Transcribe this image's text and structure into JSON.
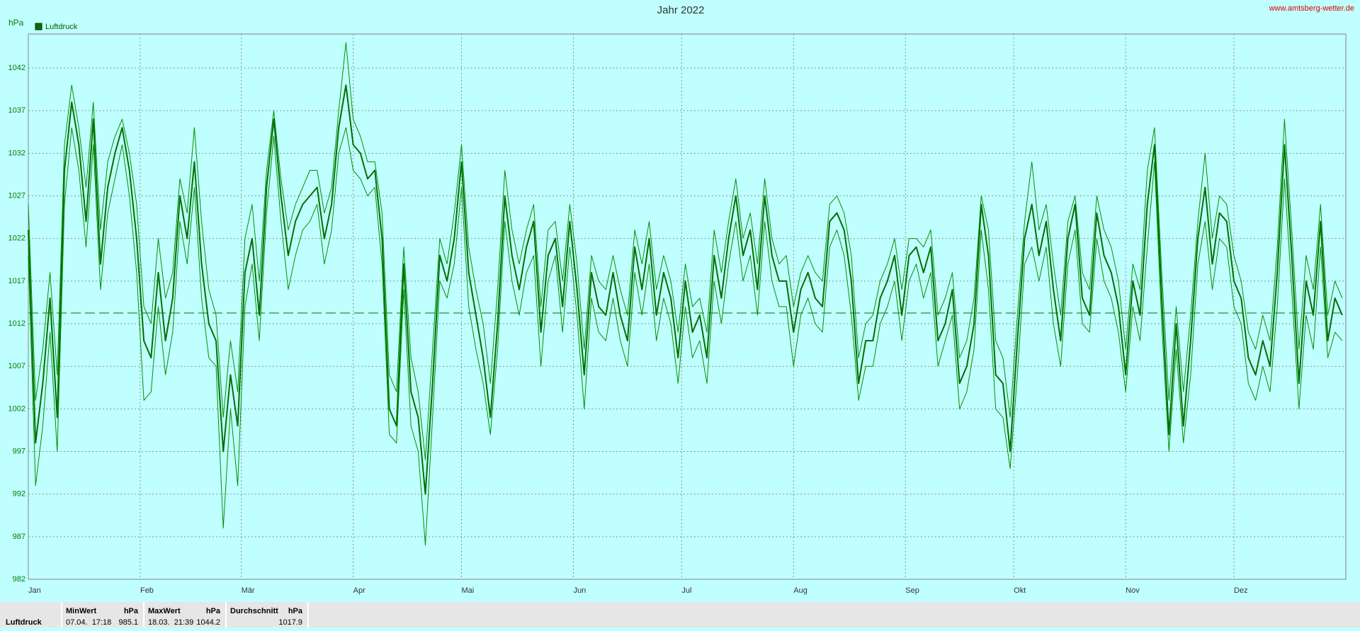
{
  "chart_data": {
    "type": "line",
    "title": "Jahr 2022",
    "y_label": "hPa",
    "source": "www.amtsberg-wetter.de",
    "xlim": [
      0,
      365
    ],
    "ylim": [
      982,
      1046
    ],
    "xticks": [
      {
        "value": 0,
        "label": "Jan"
      },
      {
        "value": 31,
        "label": "Feb"
      },
      {
        "value": 59,
        "label": "Mär"
      },
      {
        "value": 90,
        "label": "Apr"
      },
      {
        "value": 120,
        "label": "Mai"
      },
      {
        "value": 151,
        "label": "Jun"
      },
      {
        "value": 181,
        "label": "Jul"
      },
      {
        "value": 212,
        "label": "Aug"
      },
      {
        "value": 243,
        "label": "Sep"
      },
      {
        "value": 273,
        "label": "Okt"
      },
      {
        "value": 304,
        "label": "Nov"
      },
      {
        "value": 334,
        "label": "Dez"
      }
    ],
    "yticks": [
      982,
      987,
      992,
      997,
      1002,
      1007,
      1012,
      1017,
      1022,
      1027,
      1032,
      1037,
      1042
    ],
    "grid": true,
    "reference_line": 1013.25,
    "x": [
      0,
      2,
      4,
      6,
      8,
      10,
      12,
      14,
      16,
      18,
      20,
      22,
      24,
      26,
      28,
      30,
      32,
      34,
      36,
      38,
      40,
      42,
      44,
      46,
      48,
      50,
      52,
      54,
      56,
      58,
      60,
      62,
      64,
      66,
      68,
      70,
      72,
      74,
      76,
      78,
      80,
      82,
      84,
      86,
      88,
      90,
      92,
      94,
      96,
      98,
      100,
      102,
      104,
      106,
      108,
      110,
      112,
      114,
      116,
      118,
      120,
      122,
      124,
      126,
      128,
      130,
      132,
      134,
      136,
      138,
      140,
      142,
      144,
      146,
      148,
      150,
      152,
      154,
      156,
      158,
      160,
      162,
      164,
      166,
      168,
      170,
      172,
      174,
      176,
      178,
      180,
      182,
      184,
      186,
      188,
      190,
      192,
      194,
      196,
      198,
      200,
      202,
      204,
      206,
      208,
      210,
      212,
      214,
      216,
      218,
      220,
      222,
      224,
      226,
      228,
      230,
      232,
      234,
      236,
      238,
      240,
      242,
      244,
      246,
      248,
      250,
      252,
      254,
      256,
      258,
      260,
      262,
      264,
      266,
      268,
      270,
      272,
      274,
      276,
      278,
      280,
      282,
      284,
      286,
      288,
      290,
      292,
      294,
      296,
      298,
      300,
      302,
      304,
      306,
      308,
      310,
      312,
      314,
      316,
      318,
      320,
      322,
      324,
      326,
      328,
      330,
      332,
      334,
      336,
      338,
      340,
      342,
      344,
      346,
      348,
      350,
      352,
      354,
      356,
      358,
      360,
      362,
      364
    ],
    "series": [
      {
        "color": "#009000",
        "width": 1,
        "values": [
          1026,
          1003,
          1009,
          1018,
          1006,
          1033,
          1040,
          1035,
          1028,
          1038,
          1023,
          1031,
          1034,
          1036,
          1032,
          1026,
          1014,
          1012,
          1022,
          1015,
          1018,
          1029,
          1025,
          1035,
          1024,
          1016,
          1013,
          1001,
          1010,
          1004,
          1022,
          1026,
          1017,
          1030,
          1037,
          1029,
          1023,
          1026,
          1028,
          1030,
          1030,
          1025,
          1028,
          1037,
          1045,
          1036,
          1034,
          1031,
          1031,
          1025,
          1006,
          1004,
          1021,
          1008,
          1004,
          996,
          1009,
          1022,
          1019,
          1025,
          1033,
          1021,
          1016,
          1012,
          1005,
          1016,
          1030,
          1023,
          1019,
          1023,
          1026,
          1014,
          1023,
          1024,
          1017,
          1026,
          1019,
          1009,
          1020,
          1017,
          1016,
          1020,
          1016,
          1013,
          1023,
          1019,
          1024,
          1016,
          1020,
          1017,
          1011,
          1019,
          1014,
          1015,
          1011,
          1023,
          1018,
          1024,
          1029,
          1022,
          1025,
          1019,
          1029,
          1022,
          1019,
          1020,
          1014,
          1018,
          1020,
          1018,
          1017,
          1026,
          1027,
          1025,
          1020,
          1008,
          1012,
          1013,
          1017,
          1019,
          1022,
          1016,
          1022,
          1022,
          1021,
          1023,
          1013,
          1015,
          1018,
          1008,
          1010,
          1015,
          1027,
          1023,
          1010,
          1008,
          1001,
          1013,
          1024,
          1031,
          1023,
          1026,
          1019,
          1013,
          1024,
          1027,
          1018,
          1016,
          1027,
          1023,
          1021,
          1017,
          1009,
          1019,
          1016,
          1030,
          1035,
          1018,
          1003,
          1014,
          1004,
          1013,
          1024,
          1032,
          1022,
          1027,
          1026,
          1020,
          1017,
          1011,
          1009,
          1013,
          1010,
          1021,
          1036,
          1023,
          1009,
          1020,
          1016,
          1026,
          1013,
          1017,
          1015
        ]
      },
      {
        "color": "#009000",
        "width": 1,
        "values": [
          1020,
          993,
          1000,
          1011,
          997,
          1026,
          1035,
          1030,
          1021,
          1033,
          1016,
          1025,
          1029,
          1033,
          1027,
          1018,
          1003,
          1004,
          1014,
          1006,
          1011,
          1024,
          1019,
          1028,
          1015,
          1008,
          1007,
          988,
          1002,
          993,
          1014,
          1019,
          1010,
          1025,
          1034,
          1024,
          1016,
          1020,
          1023,
          1024,
          1026,
          1019,
          1023,
          1032,
          1035,
          1030,
          1029,
          1027,
          1028,
          1019,
          999,
          998,
          1016,
          1000,
          997,
          986,
          1001,
          1017,
          1015,
          1019,
          1028,
          1014,
          1009,
          1005,
          999,
          1009,
          1024,
          1017,
          1013,
          1018,
          1020,
          1007,
          1017,
          1020,
          1011,
          1021,
          1013,
          1002,
          1015,
          1011,
          1010,
          1015,
          1010,
          1007,
          1018,
          1013,
          1019,
          1010,
          1015,
          1012,
          1005,
          1014,
          1008,
          1010,
          1005,
          1017,
          1012,
          1019,
          1024,
          1017,
          1020,
          1013,
          1024,
          1017,
          1014,
          1014,
          1007,
          1013,
          1015,
          1012,
          1011,
          1021,
          1023,
          1020,
          1013,
          1003,
          1007,
          1007,
          1012,
          1014,
          1017,
          1010,
          1017,
          1019,
          1015,
          1018,
          1007,
          1010,
          1013,
          1002,
          1004,
          1009,
          1023,
          1016,
          1002,
          1001,
          995,
          1006,
          1019,
          1021,
          1017,
          1021,
          1012,
          1007,
          1019,
          1023,
          1012,
          1011,
          1022,
          1017,
          1015,
          1011,
          1004,
          1014,
          1010,
          1021,
          1031,
          1012,
          997,
          1009,
          998,
          1006,
          1019,
          1024,
          1016,
          1022,
          1021,
          1014,
          1012,
          1005,
          1003,
          1007,
          1004,
          1014,
          1029,
          1016,
          1002,
          1013,
          1009,
          1021,
          1008,
          1011,
          1010
        ]
      },
      {
        "name": "Luftdruck",
        "color": "#007000",
        "width": 2,
        "values": [
          1023,
          998,
          1005,
          1015,
          1001,
          1030,
          1038,
          1033,
          1024,
          1036,
          1019,
          1028,
          1032,
          1035,
          1030,
          1022,
          1010,
          1008,
          1018,
          1010,
          1015,
          1027,
          1022,
          1031,
          1019,
          1012,
          1010,
          997,
          1006,
          1000,
          1018,
          1022,
          1013,
          1028,
          1036,
          1027,
          1020,
          1024,
          1026,
          1027,
          1028,
          1022,
          1026,
          1035,
          1040,
          1033,
          1032,
          1029,
          1030,
          1022,
          1002,
          1000,
          1019,
          1004,
          1001,
          992,
          1005,
          1020,
          1017,
          1022,
          1031,
          1018,
          1013,
          1008,
          1001,
          1012,
          1027,
          1020,
          1016,
          1021,
          1024,
          1011,
          1020,
          1022,
          1014,
          1024,
          1016,
          1006,
          1018,
          1014,
          1013,
          1018,
          1013,
          1010,
          1021,
          1016,
          1022,
          1013,
          1018,
          1015,
          1008,
          1017,
          1011,
          1013,
          1008,
          1020,
          1015,
          1022,
          1027,
          1020,
          1023,
          1016,
          1027,
          1020,
          1017,
          1017,
          1011,
          1016,
          1018,
          1015,
          1014,
          1024,
          1025,
          1023,
          1017,
          1005,
          1010,
          1010,
          1015,
          1017,
          1020,
          1013,
          1020,
          1021,
          1018,
          1021,
          1010,
          1012,
          1016,
          1005,
          1007,
          1012,
          1026,
          1020,
          1006,
          1005,
          997,
          1010,
          1022,
          1026,
          1020,
          1024,
          1016,
          1010,
          1022,
          1026,
          1015,
          1013,
          1025,
          1020,
          1018,
          1014,
          1006,
          1017,
          1013,
          1026,
          1033,
          1015,
          999,
          1012,
          1000,
          1010,
          1022,
          1028,
          1019,
          1025,
          1024,
          1017,
          1015,
          1008,
          1006,
          1010,
          1007,
          1018,
          1033,
          1020,
          1005,
          1017,
          1013,
          1024,
          1010,
          1015,
          1013
        ]
      }
    ]
  },
  "stats_table": {
    "row_label": "Luftdruck",
    "columns": [
      {
        "header": "MinWert",
        "unit": "hPa",
        "time": "07.04.  17:18",
        "value": 985.1
      },
      {
        "header": "MaxWert",
        "unit": "hPa",
        "time": "18.03.  21:39",
        "value": 1044.2
      },
      {
        "header": "Durchschnitt",
        "unit": "hPa",
        "value": 1017.9
      }
    ]
  }
}
